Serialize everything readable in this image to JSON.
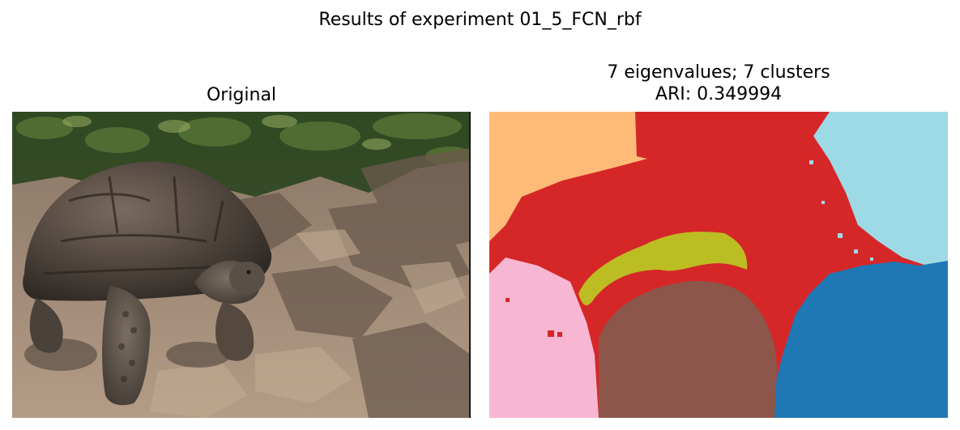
{
  "figure": {
    "suptitle": "Results of experiment 01_5_FCN_rbf"
  },
  "left_panel": {
    "title": "Original",
    "image": "tortoise-photo"
  },
  "right_panel": {
    "title_line1": "7 eigenvalues; 7 clusters",
    "title_line2": "ARI: 0.349994",
    "image": "segmentation-map",
    "num_clusters": 7,
    "cluster_colors": {
      "orange": "#FDBB77",
      "red": "#D62728",
      "light_blue": "#9EDAE5",
      "olive": "#BCBD22",
      "pink": "#F7B6D2",
      "brown": "#8C564B",
      "blue": "#1F77B4"
    }
  }
}
